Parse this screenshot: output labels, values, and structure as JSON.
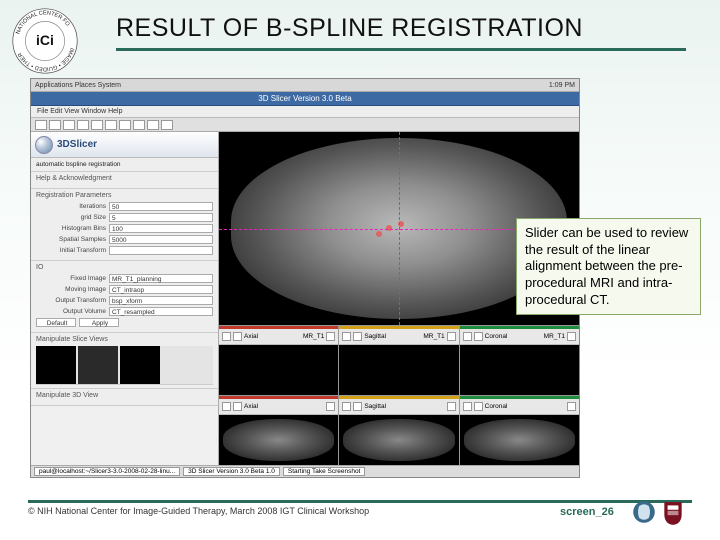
{
  "colors": {
    "accent": "#2a6a5a",
    "callout_bg": "#f6f9ee",
    "callout_border": "#8aa86a",
    "slide_bg_top": "#eaf3f0",
    "crosshair": "#e2b",
    "titlebar": "#3e6aa3"
  },
  "title": "RESULT OF B-SPLINE REGISTRATION",
  "logo_top": {
    "org_text_top": "NAT",
    "org_text_ring": "IONAL CENTER FO",
    "abbrev": "iGi"
  },
  "screenshot": {
    "desktop": {
      "menu_left": "Applications   Places   System",
      "clock": "1:09 PM"
    },
    "window_title": "3D Slicer Version 3.0 Beta",
    "menubar": "File   Edit   View   Window   Help",
    "app_name": "3DSlicer",
    "left_panel": {
      "module_label": "automatic bspline registration",
      "section1": "Help & Acknowledgment",
      "section2": "Registration Parameters",
      "fields": [
        {
          "label": "Iterations",
          "value": "50"
        },
        {
          "label": "grid Size",
          "value": "5"
        },
        {
          "label": "Histogram Bins",
          "value": "100"
        },
        {
          "label": "Spatial Samples",
          "value": "5000"
        },
        {
          "label": "Initial Transform",
          "value": ""
        }
      ],
      "section3": "IO",
      "io_fields": [
        {
          "label": "Fixed Image",
          "value": "MR_T1_planning"
        },
        {
          "label": "Moving Image",
          "value": "CT_intraop"
        },
        {
          "label": "Output Transform",
          "value": "bsp_xform"
        },
        {
          "label": "Output Volume",
          "value": "CT_resampled"
        }
      ],
      "buttons": [
        "Default",
        "Apply"
      ],
      "section4": "Manipulate Slice Views",
      "section5": "Manipulate 3D View"
    },
    "strips": {
      "row1": [
        {
          "color": "red",
          "label": "Axial",
          "field": "MR_T1"
        },
        {
          "color": "yel",
          "label": "Sagittal",
          "field": "MR_T1"
        },
        {
          "color": "grn",
          "label": "Coronal",
          "field": "MR_T1"
        }
      ],
      "row2": [
        {
          "color": "red",
          "label": "Axial"
        },
        {
          "color": "yel",
          "label": "Sagittal"
        },
        {
          "color": "grn",
          "label": "Coronal"
        }
      ]
    },
    "taskbar": {
      "items": [
        "paul@localhost:~/Slicer3-3.0-2008-02-28-linu...",
        "3D Slicer Version 3.0 Beta 1.0",
        "Starting Take Screenshot"
      ]
    }
  },
  "callout": "Slider can be used to review the result of the linear alignment between the pre-procedural MRI and intra-procedural CT.",
  "footer": {
    "credit": "© NIH National Center for Image-Guided Therapy, March 2008 IGT Clinical Workshop",
    "slide_id": "screen_26"
  }
}
